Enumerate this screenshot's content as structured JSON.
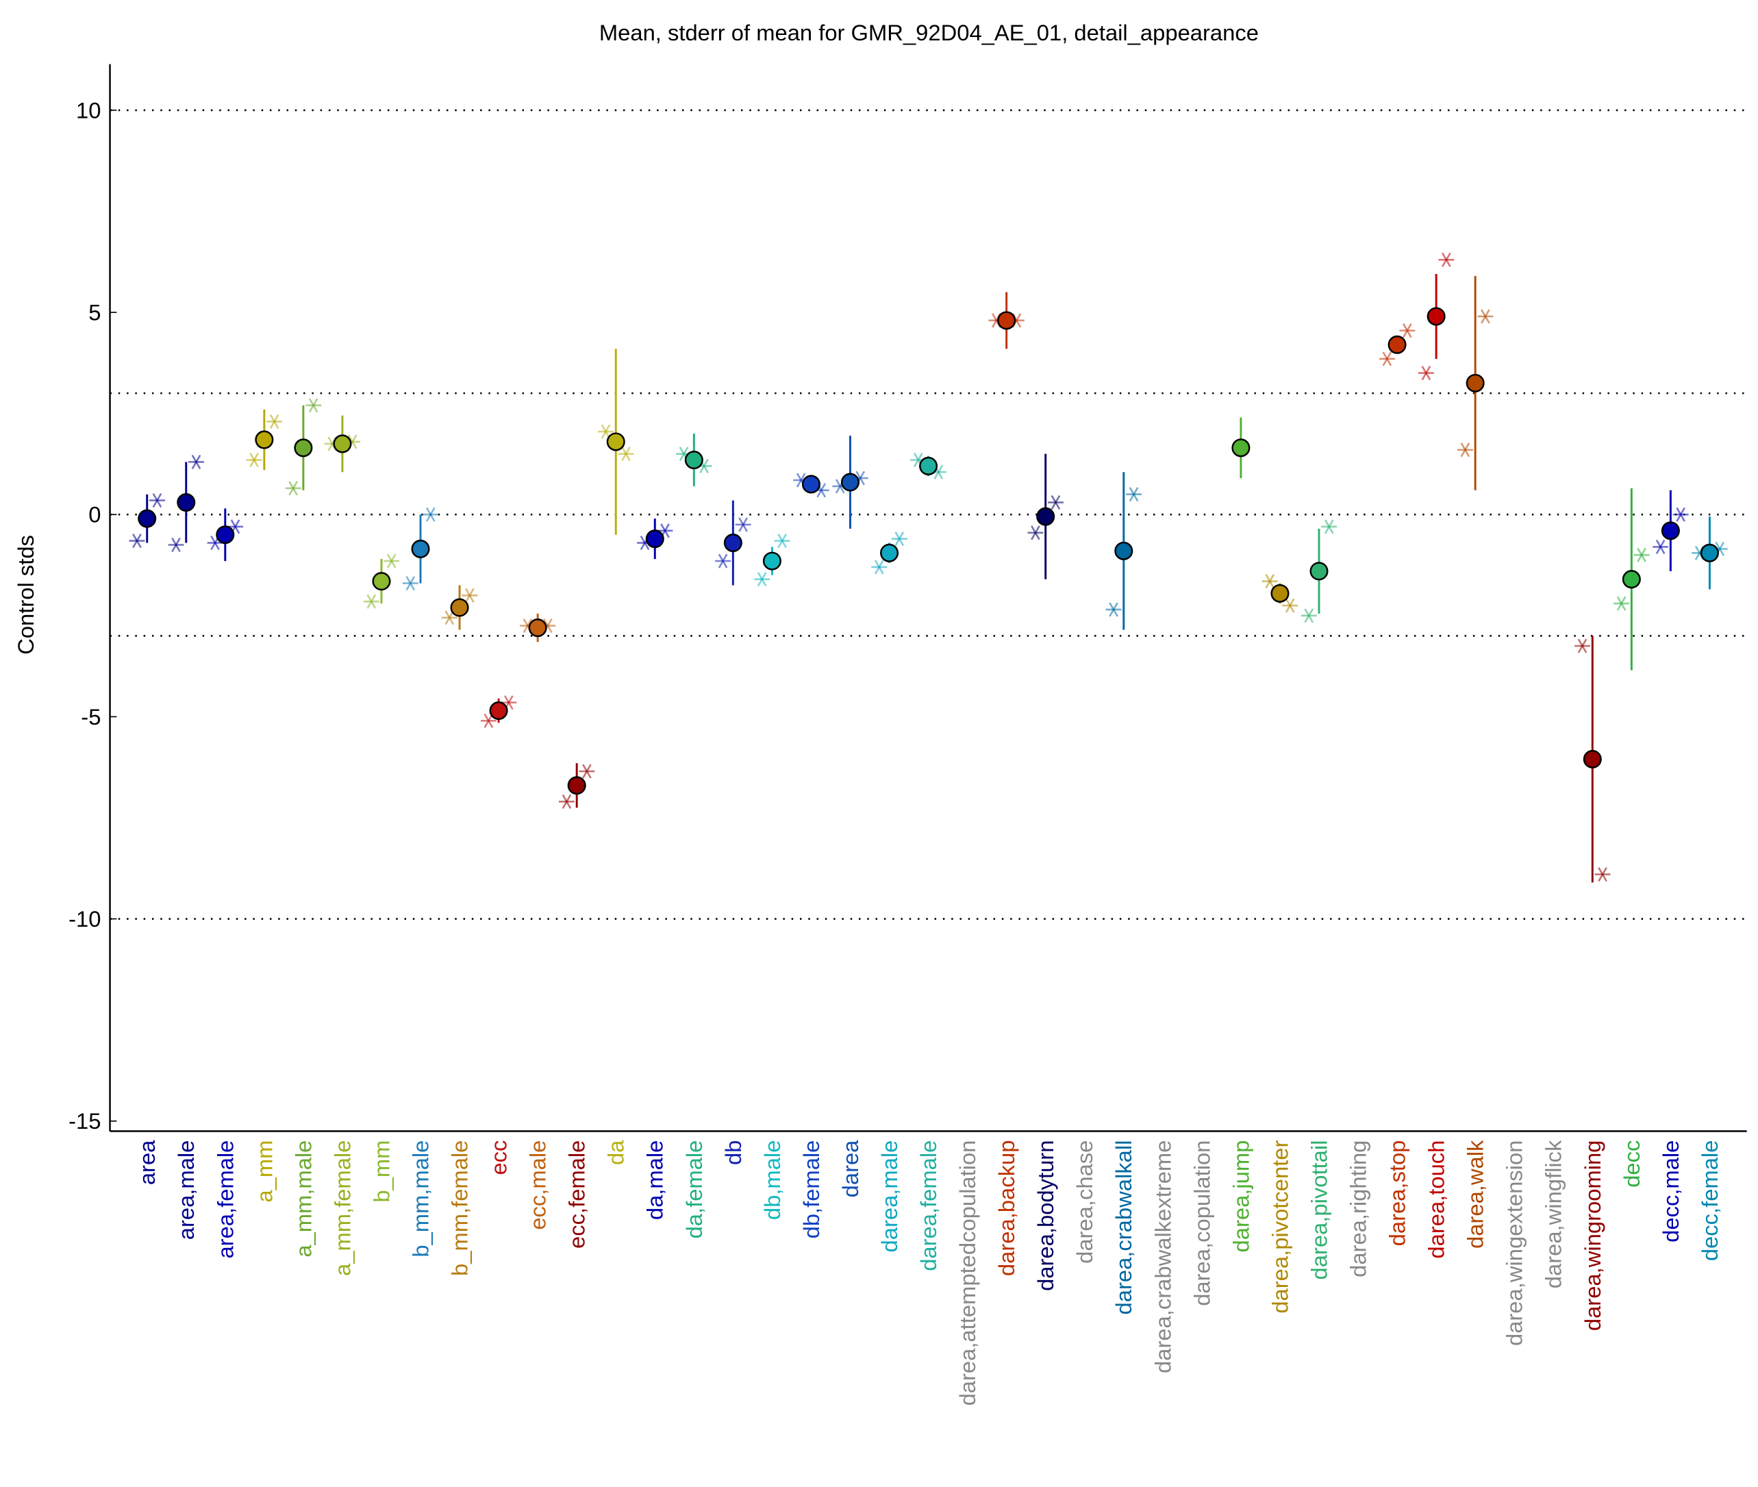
{
  "chart_data": {
    "type": "errorbar",
    "title": "Mean, stderr of mean for GMR_92D04_AE_01, detail_appearance",
    "y_label": "Control stds",
    "categories": [
      "area",
      "area,male",
      "area,female",
      "a_mm",
      "a_mm,male",
      "a_mm,female",
      "b_mm",
      "b_mm,male",
      "b_mm,female",
      "ecc",
      "ecc,male",
      "ecc,female",
      "da",
      "da,male",
      "da,female",
      "db",
      "db,male",
      "db,female",
      "darea",
      "darea,male",
      "darea,female",
      "darea,attemptedcopulation",
      "darea,backup",
      "darea,bodyturn",
      "darea,chase",
      "darea,crabwalkall",
      "darea,crabwalkextreme",
      "darea,copulation",
      "darea,jump",
      "darea,pivotcenter",
      "darea,pivottail",
      "darea,righting",
      "darea,stop",
      "darea,touch",
      "darea,walk",
      "darea,wingextension",
      "darea,wingflick",
      "darea,wingrooming",
      "decc",
      "decc,male",
      "decc,female"
    ],
    "values": [
      -0.1,
      0.3,
      -0.5,
      1.85,
      1.65,
      1.75,
      -1.65,
      -0.85,
      -2.3,
      -4.85,
      -2.8,
      -6.7,
      1.8,
      -0.6,
      1.35,
      -0.7,
      -1.15,
      0.75,
      0.8,
      -0.95,
      1.2,
      null,
      4.8,
      -0.05,
      null,
      -0.9,
      null,
      null,
      1.65,
      -1.95,
      -1.4,
      null,
      4.2,
      4.9,
      3.25,
      null,
      null,
      -6.05,
      -1.6,
      -0.4,
      -0.95
    ],
    "errors": [
      0.6,
      1.0,
      0.65,
      0.75,
      1.05,
      0.7,
      0.55,
      0.85,
      0.55,
      0.3,
      0.35,
      0.55,
      2.3,
      0.5,
      0.65,
      1.05,
      0.35,
      0.15,
      1.15,
      0.25,
      0.25,
      null,
      0.7,
      1.55,
      null,
      1.95,
      null,
      null,
      0.75,
      0.25,
      1.05,
      null,
      0.15,
      1.05,
      2.65,
      null,
      null,
      3.05,
      2.25,
      1.0,
      0.9
    ],
    "star_left": [
      -0.65,
      -0.75,
      -0.7,
      1.35,
      0.65,
      1.75,
      -2.15,
      -1.7,
      -2.55,
      -5.1,
      -2.75,
      -7.1,
      2.05,
      -0.7,
      1.5,
      -1.15,
      -1.6,
      0.85,
      0.7,
      -1.3,
      1.35,
      null,
      4.8,
      -0.45,
      null,
      -2.35,
      null,
      null,
      null,
      -1.65,
      -2.5,
      null,
      3.85,
      3.5,
      1.6,
      null,
      null,
      -3.25,
      -2.2,
      -0.8,
      -0.95
    ],
    "star_right": [
      0.35,
      1.3,
      -0.3,
      2.3,
      2.7,
      1.8,
      -1.15,
      0.0,
      -2.0,
      -4.65,
      -2.75,
      -6.35,
      1.5,
      -0.4,
      1.2,
      -0.25,
      -0.65,
      0.6,
      0.9,
      -0.6,
      1.05,
      null,
      4.8,
      0.3,
      null,
      0.5,
      null,
      null,
      null,
      -2.25,
      -0.3,
      null,
      4.55,
      6.3,
      4.9,
      null,
      null,
      -8.9,
      -1.0,
      0.0,
      -0.85
    ],
    "colors": [
      "#00008b",
      "#00008b",
      "#0000b0",
      "#b8a800",
      "#6aa82e",
      "#99b020",
      "#8ab82e",
      "#1a7ab8",
      "#b87a10",
      "#c01010",
      "#c06010",
      "#900000",
      "#b8b010",
      "#0000b0",
      "#20b080",
      "#1020b0",
      "#10b8c0",
      "#1040c0",
      "#1050b0",
      "#10a8c0",
      "#20b0a0",
      "#888888",
      "#c03000",
      "#000060",
      "#888888",
      "#0068a0",
      "#888888",
      "#888888",
      "#50b030",
      "#b08800",
      "#30b070",
      "#888888",
      "#c03000",
      "#c00000",
      "#b04800",
      "#888888",
      "#888888",
      "#900000",
      "#30b040",
      "#0000b0",
      "#0088b0"
    ],
    "ylim": [
      -15.25,
      11.14
    ],
    "yticks": [
      -15,
      -10,
      -5,
      0,
      5,
      10
    ],
    "reference_lines": [
      10,
      3,
      0,
      -3,
      -10
    ]
  }
}
